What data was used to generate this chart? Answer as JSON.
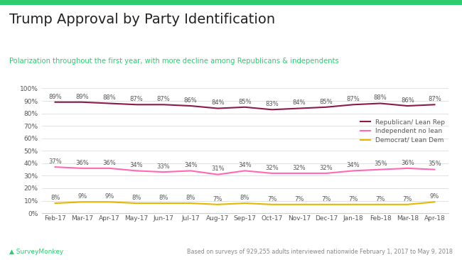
{
  "title": "Trump Approval by Party Identification",
  "subtitle": "Polarization throughout the first year, with more decline among Republicans & independents",
  "subtitle_color": "#2ecc71",
  "title_color": "#222222",
  "x_labels": [
    "Feb-17",
    "Mar-17",
    "Apr-17",
    "May-17",
    "Jun-17",
    "Jul-17",
    "Aug-17",
    "Sep-17",
    "Oct-17",
    "Nov-17",
    "Dec-17",
    "Jan-18",
    "Feb-18",
    "Mar-18",
    "Apr-18"
  ],
  "republican": [
    89,
    89,
    88,
    87,
    87,
    86,
    84,
    85,
    83,
    84,
    85,
    87,
    88,
    86,
    87
  ],
  "independent": [
    37,
    36,
    36,
    34,
    33,
    34,
    31,
    34,
    32,
    32,
    32,
    34,
    35,
    36,
    35
  ],
  "democrat": [
    8,
    9,
    9,
    8,
    8,
    8,
    7,
    8,
    7,
    7,
    7,
    7,
    7,
    7,
    9
  ],
  "rep_color": "#8b1a4a",
  "ind_color": "#ff69b4",
  "dem_color": "#e6b800",
  "background_color": "#ffffff",
  "footer_text": "Based on surveys of 929,255 adults interviewed nationwide February 1, 2017 to May 9, 2018",
  "ylim": [
    0,
    100
  ],
  "yticks": [
    0,
    10,
    20,
    30,
    40,
    50,
    60,
    70,
    80,
    90,
    100
  ],
  "legend_labels": [
    "Republican/ Lean Rep",
    "Independent no lean",
    "Democrat/ Lean Dem"
  ],
  "top_bar_color": "#2ecc71"
}
